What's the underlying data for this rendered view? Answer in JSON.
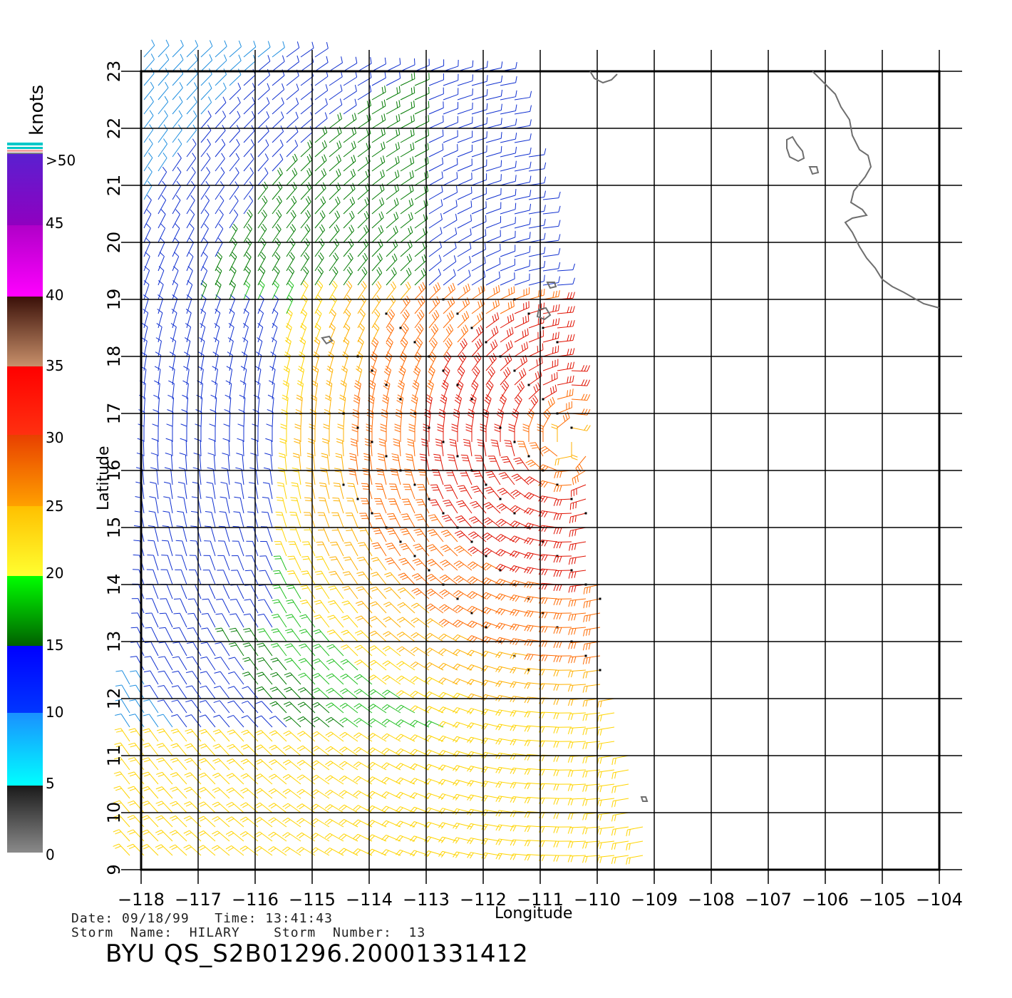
{
  "map": {
    "x_axis": {
      "label": "Longitude",
      "ticks": [
        -118,
        -117,
        -116,
        -115,
        -114,
        -113,
        -112,
        -111,
        -110,
        -109,
        -108,
        -107,
        -106,
        -105,
        -104
      ]
    },
    "y_axis": {
      "label": "Latitude",
      "ticks": [
        9,
        10,
        11,
        12,
        13,
        14,
        15,
        16,
        17,
        18,
        19,
        20,
        21,
        22,
        23
      ]
    },
    "tick_labels_x": [
      "−118",
      "−117",
      "−116",
      "−115",
      "−114",
      "−113",
      "−112",
      "−111",
      "−110",
      "−109",
      "−108",
      "−107",
      "−106",
      "−105",
      "−104"
    ],
    "tick_labels_y": [
      "9",
      "10",
      "11",
      "12",
      "13",
      "14",
      "15",
      "16",
      "17",
      "18",
      "19",
      "20",
      "21",
      "22",
      "23"
    ],
    "storm_center": {
      "lon": -110.5,
      "lat": 16.5
    },
    "coast_color": "#6e6e6e"
  },
  "legend": {
    "title": "knots",
    "labels": [
      ">50",
      "45",
      "40",
      "35",
      "30",
      "25",
      "20",
      "15",
      "10",
      "5",
      "0"
    ],
    "colors": {
      "gray": "#7a7a7a",
      "cyan": "#00ffff",
      "blue": "#0033ff",
      "green": "#00a000",
      "yellow": "#ffd000",
      "orange": "#ff8800",
      "red": "#e01000",
      "brown": "#8b4a2b",
      "magenta": "#ff00ff",
      "purple": "#6a1fd0"
    }
  },
  "footer": {
    "line1": "Date: 09/18/99   Time: 13:41:43",
    "line2": "Storm  Name:  HILARY    Storm  Number:  13",
    "title": "BYU  QS_S2B01296.20001331412"
  }
}
